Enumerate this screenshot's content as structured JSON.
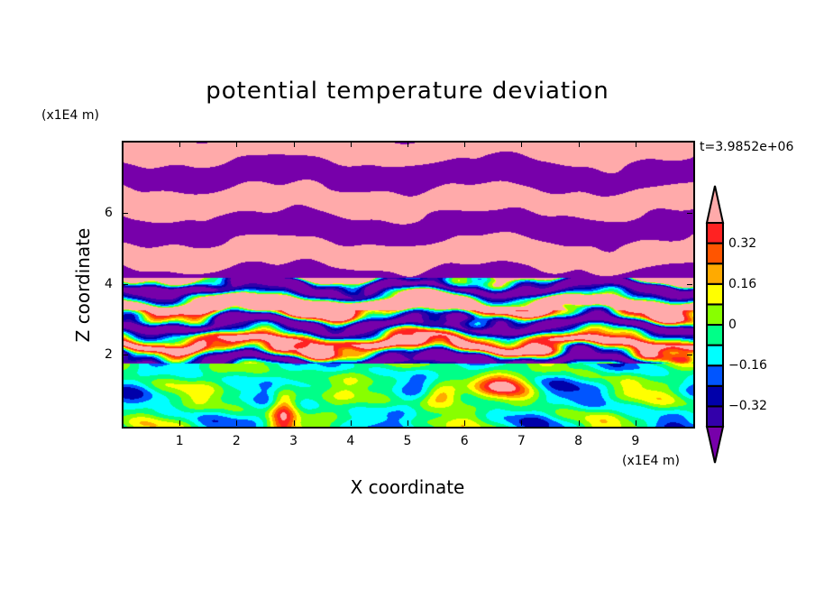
{
  "chart_data": {
    "type": "heatmap",
    "title": "potential temperature deviation",
    "xlabel": "X coordinate",
    "ylabel": "Z coordinate",
    "x_unit": "(x1E4 m)",
    "z_unit": "(x1E4 m)",
    "time_label": "t=3.9852e+06",
    "xlim": [
      0,
      10
    ],
    "ylim": [
      0,
      8
    ],
    "x_ticks": [
      "1",
      "2",
      "3",
      "4",
      "5",
      "6",
      "7",
      "8",
      "9"
    ],
    "y_ticks": [
      "2",
      "4",
      "6"
    ],
    "colorbar": {
      "levels": [
        -0.4,
        -0.32,
        -0.24,
        -0.16,
        -0.08,
        0,
        0.08,
        0.16,
        0.24,
        0.32,
        0.4
      ],
      "labels": [
        "0.32",
        "0.16",
        "0",
        "−0.16",
        "−0.32"
      ],
      "label_values": [
        0.32,
        0.16,
        0,
        -0.16,
        -0.32
      ],
      "colors": [
        "#7700aa",
        "#3300aa",
        "#0000aa",
        "#0055ff",
        "#00ffff",
        "#00ff88",
        "#88ff00",
        "#ffff00",
        "#ffaa00",
        "#ff5500",
        "#ff2222",
        "#ffaaaa"
      ],
      "extend": "both"
    }
  }
}
